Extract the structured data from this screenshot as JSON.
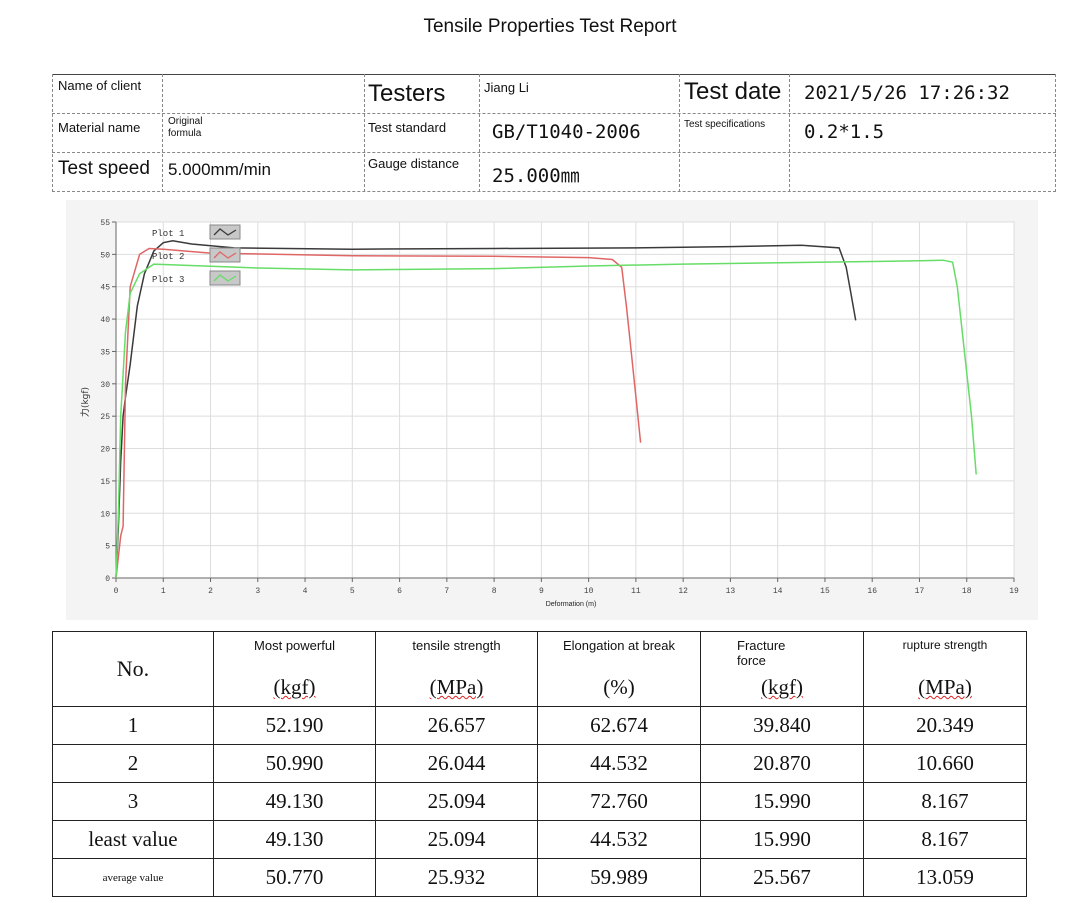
{
  "title": "Tensile Properties Test Report",
  "info": {
    "client_label": "Name of client",
    "client_value": "",
    "testers_label": "Testers",
    "testers_value": "Jiang Li",
    "date_label": "Test date",
    "date_value": "2021/5/26 17:26:32",
    "material_label": "Material name",
    "material_value_1": "Original",
    "material_value_2": "formula",
    "standard_label": "Test standard",
    "standard_value": "GB/T1040-2006",
    "spec_label": "Test specifications",
    "spec_value": "0.2*1.5",
    "speed_label": "Test speed",
    "speed_value": "5.000mm/min",
    "gauge_label": "Gauge distance",
    "gauge_value": "25.000㎜"
  },
  "chart_data": {
    "type": "line",
    "xlabel": "Deformation (m)",
    "ylabel": "力(kgf)",
    "xlim": [
      0,
      19
    ],
    "ylim": [
      0,
      55
    ],
    "xticks": [
      0,
      1,
      2,
      3,
      4,
      5,
      6,
      7,
      8,
      9,
      10,
      11,
      12,
      13,
      14,
      15,
      16,
      17,
      18,
      19
    ],
    "yticks": [
      0,
      5,
      10,
      15,
      20,
      25,
      30,
      35,
      40,
      45,
      50,
      55
    ],
    "grid": true,
    "legend_position": "top-left",
    "series": [
      {
        "name": "Plot 1",
        "color": "#3a3a3a",
        "x": [
          0,
          0.05,
          0.1,
          0.15,
          0.2,
          0.3,
          0.45,
          0.6,
          0.8,
          1.0,
          1.2,
          1.6,
          2.5,
          5,
          8,
          11,
          13,
          14.5,
          15.3,
          15.45,
          15.55,
          15.65
        ],
        "y": [
          0,
          8,
          18,
          25,
          28,
          33,
          42,
          47,
          50.5,
          51.8,
          52.1,
          51.6,
          51.0,
          50.8,
          50.9,
          51.0,
          51.2,
          51.4,
          51.0,
          48,
          44,
          39.8
        ]
      },
      {
        "name": "Plot 2",
        "color": "#e06666",
        "x": [
          0,
          0.1,
          0.15,
          0.2,
          0.3,
          0.5,
          0.7,
          1.0,
          2,
          5,
          8,
          10,
          10.5,
          10.7,
          10.8,
          10.9,
          11.0,
          11.1
        ],
        "y": [
          0,
          6.5,
          8,
          30,
          45,
          50,
          50.9,
          50.8,
          50.2,
          49.8,
          49.7,
          49.5,
          49.2,
          48,
          42,
          35,
          28,
          20.9
        ]
      },
      {
        "name": "Plot 3",
        "color": "#66dd66",
        "x": [
          0,
          0.05,
          0.1,
          0.2,
          0.3,
          0.5,
          0.8,
          1.5,
          3,
          5,
          8,
          10,
          12,
          15,
          17,
          17.5,
          17.7,
          17.8,
          17.95,
          18.1,
          18.2
        ],
        "y": [
          0,
          10,
          25,
          38,
          44,
          47,
          48.5,
          48.3,
          47.9,
          47.6,
          47.8,
          48.2,
          48.5,
          48.8,
          49.0,
          49.1,
          48.8,
          45,
          35,
          25,
          16
        ]
      }
    ]
  },
  "results": {
    "no_label": "No.",
    "headers": [
      {
        "label": "Most powerful",
        "unit": "(kgf)"
      },
      {
        "label": "tensile strength",
        "unit": "(MPa)"
      },
      {
        "label": "Elongation at break",
        "unit": "(%)"
      },
      {
        "label": "Fracture force",
        "unit": "(kgf)"
      },
      {
        "label": "rupture strength",
        "unit": "(MPa)"
      }
    ],
    "rows": [
      {
        "label": "1",
        "values": [
          "52.190",
          "26.657",
          "62.674",
          "39.840",
          "20.349"
        ]
      },
      {
        "label": "2",
        "values": [
          "50.990",
          "26.044",
          "44.532",
          "20.870",
          "10.660"
        ]
      },
      {
        "label": "3",
        "values": [
          "49.130",
          "25.094",
          "72.760",
          "15.990",
          "8.167"
        ]
      },
      {
        "label": "least value",
        "values": [
          "49.130",
          "25.094",
          "44.532",
          "15.990",
          "8.167"
        ]
      },
      {
        "label": "average value",
        "values": [
          "50.770",
          "25.932",
          "59.989",
          "25.567",
          "13.059"
        ]
      }
    ]
  }
}
